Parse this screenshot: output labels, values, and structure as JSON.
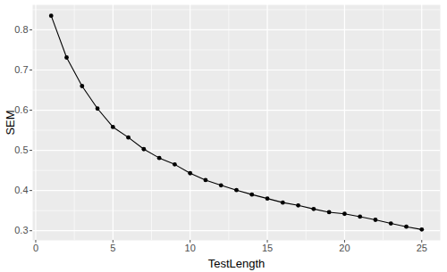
{
  "chart_data": {
    "type": "line",
    "x_label": "TestLength",
    "y_label": "SEM",
    "x": [
      1,
      2,
      3,
      4,
      5,
      6,
      7,
      8,
      9,
      10,
      11,
      12,
      13,
      14,
      15,
      16,
      17,
      18,
      19,
      20,
      21,
      22,
      23,
      24,
      25
    ],
    "values": [
      0.835,
      0.731,
      0.66,
      0.604,
      0.558,
      0.532,
      0.503,
      0.481,
      0.465,
      0.443,
      0.426,
      0.413,
      0.401,
      0.39,
      0.38,
      0.37,
      0.363,
      0.354,
      0.346,
      0.342,
      0.335,
      0.327,
      0.318,
      0.31,
      0.303
    ],
    "color": "#000000",
    "marker": "circle",
    "line_style": "solid",
    "xlim": [
      -0.2,
      26.2
    ],
    "xticks": [
      0,
      5,
      10,
      15,
      20,
      25
    ],
    "ylim": [
      0.276,
      0.862
    ],
    "yticks": [
      0.3,
      0.4,
      0.5,
      0.6,
      0.7,
      0.8
    ],
    "grid": true
  }
}
